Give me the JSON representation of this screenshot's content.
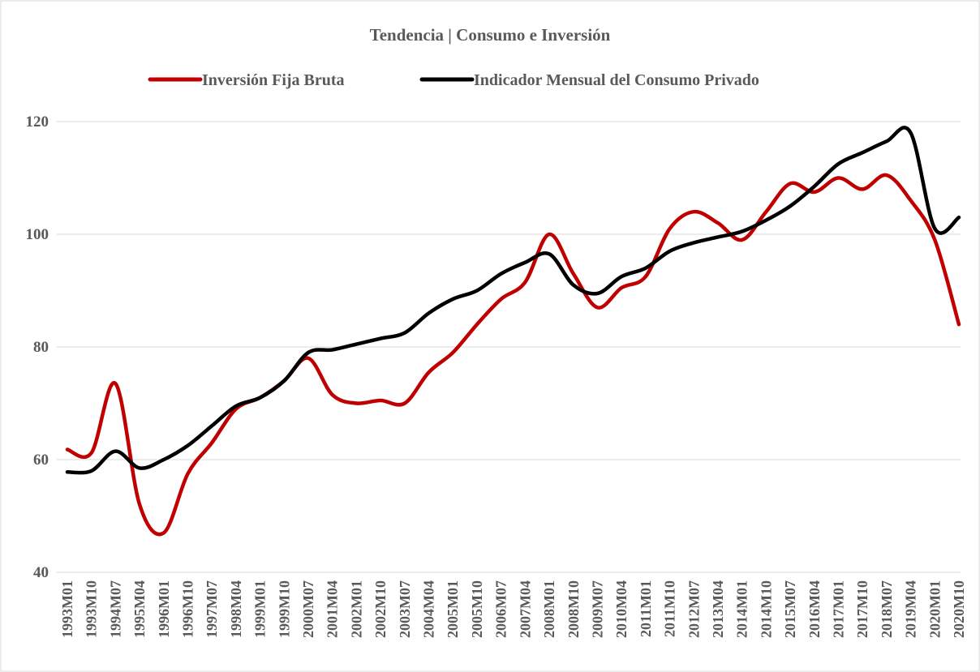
{
  "chart_data": {
    "type": "line",
    "title": "Tendencia | Consumo e Inversión",
    "categories": [
      "1993M01",
      "1993M10",
      "1994M07",
      "1995M04",
      "1996M01",
      "1996M10",
      "1997M07",
      "1998M04",
      "1999M01",
      "1999M10",
      "2000M07",
      "2001M04",
      "2002M01",
      "2002M10",
      "2003M07",
      "2004M04",
      "2005M01",
      "2005M10",
      "2006M07",
      "2007M04",
      "2008M01",
      "2008M10",
      "2009M07",
      "2010M04",
      "2011M01",
      "2011M10",
      "2012M07",
      "2013M04",
      "2014M01",
      "2014M10",
      "2015M07",
      "2016M04",
      "2017M01",
      "2017M10",
      "2018M07",
      "2019M04",
      "2020M01",
      "2020M10"
    ],
    "series": [
      {
        "name": "Inversión Fija Bruta",
        "color": "#c00000",
        "values": [
          61.8,
          61.2,
          73.5,
          52,
          47,
          57.5,
          63,
          69,
          71,
          74,
          78,
          71.5,
          70,
          70.5,
          70,
          75.5,
          79,
          84,
          88.5,
          91.5,
          100,
          93,
          87,
          90.5,
          92.5,
          101,
          104,
          102,
          99,
          104,
          109,
          107.5,
          110,
          108,
          110.5,
          106,
          99,
          84
        ]
      },
      {
        "name": "Indicador Mensual del Consumo Privado",
        "color": "#000000",
        "values": [
          57.8,
          58,
          61.5,
          58.5,
          60,
          62.5,
          66,
          69.5,
          71,
          74,
          79,
          79.5,
          80.5,
          81.5,
          82.5,
          86,
          88.5,
          90,
          93,
          95,
          96.5,
          91,
          89.5,
          92.5,
          94,
          97,
          98.5,
          99.5,
          100.5,
          102.5,
          105,
          108.5,
          112.5,
          114.5,
          116.5,
          118,
          101,
          103
        ]
      }
    ],
    "ylim": [
      40,
      120
    ],
    "yticks": [
      40,
      60,
      80,
      100,
      120
    ],
    "grid": true
  }
}
